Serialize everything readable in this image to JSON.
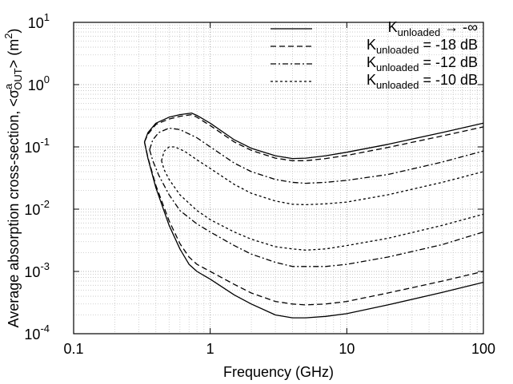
{
  "chart_data": {
    "type": "line",
    "xscale": "log",
    "yscale": "log",
    "xlim": [
      0.1,
      100
    ],
    "ylim": [
      0.0001,
      10
    ],
    "xlabel": "Frequency (GHz)",
    "ylabel": {
      "prefix": "Average absorption cross-section, <",
      "sigma": "σ",
      "superscript": "a",
      "subscript": "OUT",
      "suffix": "> (m",
      "power": "2",
      "close": ")"
    },
    "x_ticks": [
      {
        "value": 0.1,
        "label": "0.1"
      },
      {
        "value": 1,
        "label": "1"
      },
      {
        "value": 10,
        "label": "10"
      },
      {
        "value": 100,
        "label": "100"
      }
    ],
    "y_ticks": [
      {
        "value": 0.0001,
        "base": "10",
        "exp": "-4"
      },
      {
        "value": 0.001,
        "base": "10",
        "exp": "-3"
      },
      {
        "value": 0.01,
        "base": "10",
        "exp": "-2"
      },
      {
        "value": 0.1,
        "base": "10",
        "exp": "-1"
      },
      {
        "value": 1,
        "base": "10",
        "exp": "0"
      },
      {
        "value": 10,
        "base": "10",
        "exp": "1"
      }
    ],
    "grid": true,
    "legend_position": "top-right",
    "series": [
      {
        "legend": {
          "main": "K",
          "sub": "unloaded",
          "rest": " → -∞"
        },
        "dash": "solid",
        "branches": [
          [
            [
              0.33,
              0.12
            ],
            [
              0.35,
              0.17
            ],
            [
              0.4,
              0.24
            ],
            [
              0.5,
              0.3
            ],
            [
              0.6,
              0.33
            ],
            [
              0.73,
              0.35
            ],
            [
              0.8,
              0.32
            ],
            [
              1.0,
              0.24
            ],
            [
              1.5,
              0.13
            ],
            [
              2,
              0.095
            ],
            [
              3,
              0.072
            ],
            [
              4,
              0.065
            ],
            [
              5,
              0.066
            ],
            [
              7,
              0.072
            ],
            [
              10,
              0.082
            ],
            [
              20,
              0.11
            ],
            [
              50,
              0.17
            ],
            [
              100,
              0.24
            ]
          ],
          [
            [
              0.33,
              0.12
            ],
            [
              0.35,
              0.065
            ],
            [
              0.4,
              0.022
            ],
            [
              0.5,
              0.0055
            ],
            [
              0.6,
              0.0023
            ],
            [
              0.7,
              0.0013
            ],
            [
              0.8,
              0.001
            ],
            [
              1.0,
              0.00075
            ],
            [
              1.5,
              0.00042
            ],
            [
              2,
              0.0003
            ],
            [
              3,
              0.0002
            ],
            [
              4,
              0.00018
            ],
            [
              5,
              0.00018
            ],
            [
              7,
              0.00019
            ],
            [
              10,
              0.00021
            ],
            [
              20,
              0.00029
            ],
            [
              50,
              0.00046
            ],
            [
              100,
              0.00067
            ]
          ]
        ]
      },
      {
        "legend": {
          "main": "K",
          "sub": "unloaded",
          "rest": " = -18 dB"
        },
        "dash": "7,4",
        "branches": [
          [
            [
              0.33,
              0.12
            ],
            [
              0.35,
              0.16
            ],
            [
              0.4,
              0.23
            ],
            [
              0.5,
              0.28
            ],
            [
              0.6,
              0.31
            ],
            [
              0.73,
              0.33
            ],
            [
              0.8,
              0.3
            ],
            [
              1.0,
              0.22
            ],
            [
              1.5,
              0.12
            ],
            [
              2,
              0.088
            ],
            [
              3,
              0.066
            ],
            [
              4,
              0.06
            ],
            [
              5,
              0.06
            ],
            [
              7,
              0.065
            ],
            [
              10,
              0.073
            ],
            [
              20,
              0.098
            ],
            [
              50,
              0.15
            ],
            [
              100,
              0.21
            ]
          ],
          [
            [
              0.33,
              0.12
            ],
            [
              0.35,
              0.067
            ],
            [
              0.4,
              0.024
            ],
            [
              0.5,
              0.0065
            ],
            [
              0.6,
              0.0028
            ],
            [
              0.7,
              0.0017
            ],
            [
              0.8,
              0.0013
            ],
            [
              1.0,
              0.001
            ],
            [
              1.5,
              0.00062
            ],
            [
              2,
              0.00045
            ],
            [
              3,
              0.00033
            ],
            [
              4,
              0.0003
            ],
            [
              5,
              0.00029
            ],
            [
              7,
              0.0003
            ],
            [
              10,
              0.00033
            ],
            [
              20,
              0.00045
            ],
            [
              50,
              0.0007
            ],
            [
              100,
              0.001
            ]
          ]
        ]
      },
      {
        "legend": {
          "main": "K",
          "sub": "unloaded",
          "rest": " = -12 dB"
        },
        "dash": "7,3,2,3",
        "branches": [
          [
            [
              0.36,
              0.09
            ],
            [
              0.38,
              0.13
            ],
            [
              0.42,
              0.17
            ],
            [
              0.5,
              0.2
            ],
            [
              0.6,
              0.19
            ],
            [
              0.8,
              0.14
            ],
            [
              1.0,
              0.1
            ],
            [
              1.5,
              0.055
            ],
            [
              2,
              0.04
            ],
            [
              3,
              0.03
            ],
            [
              4,
              0.027
            ],
            [
              5,
              0.026
            ],
            [
              7,
              0.027
            ],
            [
              10,
              0.029
            ],
            [
              20,
              0.036
            ],
            [
              50,
              0.057
            ],
            [
              100,
              0.086
            ]
          ],
          [
            [
              0.36,
              0.09
            ],
            [
              0.38,
              0.06
            ],
            [
              0.42,
              0.035
            ],
            [
              0.5,
              0.017
            ],
            [
              0.6,
              0.0095
            ],
            [
              0.8,
              0.0058
            ],
            [
              1.0,
              0.0043
            ],
            [
              1.5,
              0.0026
            ],
            [
              2,
              0.0019
            ],
            [
              3,
              0.0014
            ],
            [
              4,
              0.0012
            ],
            [
              5,
              0.0012
            ],
            [
              7,
              0.0012
            ],
            [
              10,
              0.0013
            ],
            [
              20,
              0.0017
            ],
            [
              50,
              0.0027
            ],
            [
              100,
              0.0043
            ]
          ]
        ]
      },
      {
        "legend": {
          "main": "K",
          "sub": "unloaded",
          "rest": " = -10 dB"
        },
        "dash": "3,3",
        "branches": [
          [
            [
              0.44,
              0.06
            ],
            [
              0.46,
              0.085
            ],
            [
              0.5,
              0.1
            ],
            [
              0.55,
              0.1
            ],
            [
              0.65,
              0.085
            ],
            [
              0.8,
              0.062
            ],
            [
              1.0,
              0.045
            ],
            [
              1.5,
              0.025
            ],
            [
              2,
              0.018
            ],
            [
              3,
              0.0135
            ],
            [
              4,
              0.012
            ],
            [
              5,
              0.0118
            ],
            [
              7,
              0.0122
            ],
            [
              10,
              0.013
            ],
            [
              20,
              0.017
            ],
            [
              50,
              0.027
            ],
            [
              100,
              0.04
            ]
          ],
          [
            [
              0.44,
              0.06
            ],
            [
              0.46,
              0.043
            ],
            [
              0.5,
              0.03
            ],
            [
              0.6,
              0.017
            ],
            [
              0.8,
              0.0095
            ],
            [
              1.0,
              0.0068
            ],
            [
              1.5,
              0.0043
            ],
            [
              2,
              0.0033
            ],
            [
              3,
              0.0025
            ],
            [
              4,
              0.0023
            ],
            [
              5,
              0.0022
            ],
            [
              7,
              0.0023
            ],
            [
              10,
              0.0026
            ],
            [
              20,
              0.0034
            ],
            [
              50,
              0.0055
            ],
            [
              100,
              0.0083
            ]
          ]
        ]
      }
    ]
  }
}
